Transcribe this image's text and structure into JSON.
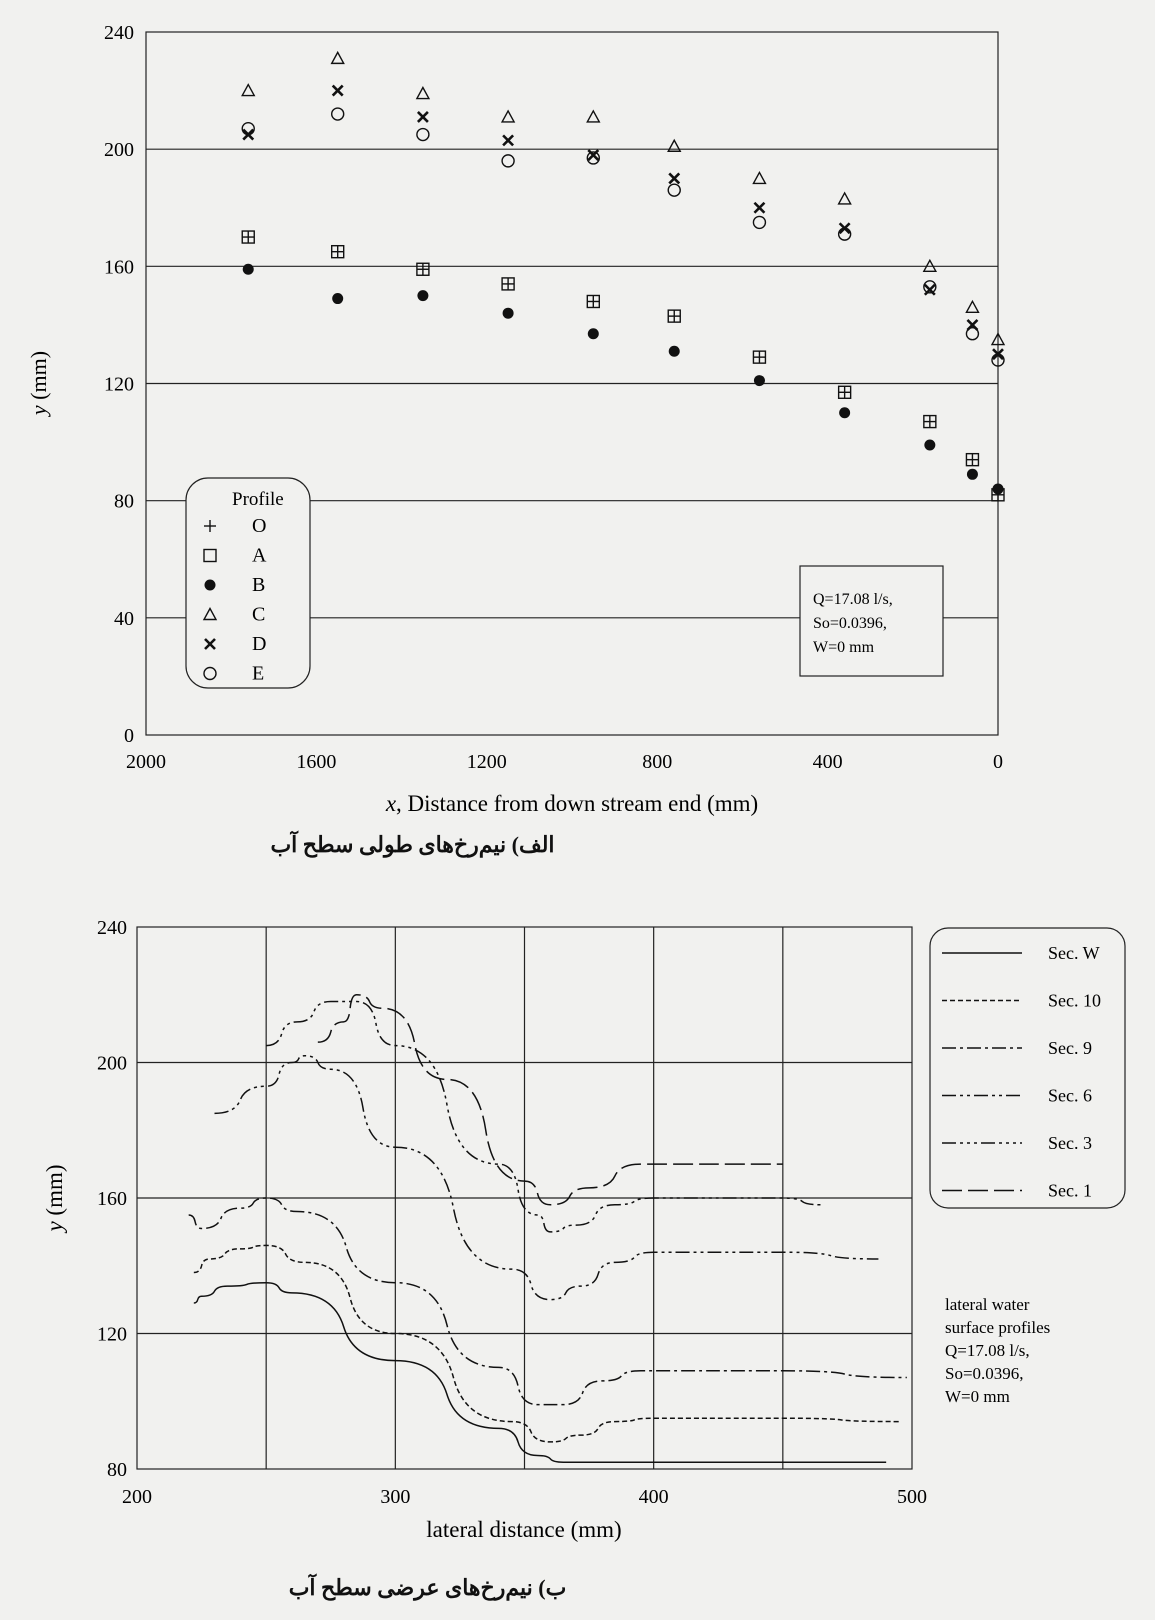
{
  "chart_data": [
    {
      "type": "scatter",
      "title": "",
      "caption": "الف) نیم‌رخ‌های طولی سطح آب",
      "xlabel_var": "x",
      "xlabel_rest": ", Distance from down stream end (mm)",
      "ylabel_var": "y",
      "ylabel_rest": " (mm)",
      "xlim": [
        2000,
        0
      ],
      "ylim": [
        0,
        240
      ],
      "xticks": [
        2000,
        1600,
        1200,
        800,
        400,
        0
      ],
      "yticks": [
        0,
        40,
        80,
        120,
        160,
        200,
        240
      ],
      "grid": "horizontal",
      "legend_title": "Profile",
      "legend_position": "bottom-left",
      "annotation": [
        "Q=17.08 l/s,",
        "So=0.0396,",
        "W=0 mm"
      ],
      "x": [
        1760,
        1550,
        1350,
        1150,
        950,
        760,
        560,
        360,
        160,
        60,
        0
      ],
      "series": [
        {
          "name": "O",
          "marker": "plus",
          "values": [
            170,
            165,
            159,
            154,
            148,
            143,
            129,
            117,
            107,
            94,
            82
          ]
        },
        {
          "name": "A",
          "marker": "square",
          "values": [
            170,
            165,
            159,
            154,
            148,
            143,
            129,
            117,
            107,
            94,
            82
          ]
        },
        {
          "name": "B",
          "marker": "dot",
          "values": [
            159,
            149,
            150,
            144,
            137,
            131,
            121,
            110,
            99,
            89,
            84
          ]
        },
        {
          "name": "C",
          "marker": "triangle",
          "values": [
            220,
            231,
            219,
            211,
            211,
            201,
            190,
            183,
            160,
            146,
            135
          ]
        },
        {
          "name": "D",
          "marker": "cross",
          "values": [
            205,
            220,
            211,
            203,
            198,
            190,
            180,
            173,
            152,
            140,
            130
          ]
        },
        {
          "name": "E",
          "marker": "circle",
          "values": [
            207,
            212,
            205,
            196,
            197,
            186,
            175,
            171,
            153,
            137,
            128
          ]
        }
      ]
    },
    {
      "type": "line",
      "title": "",
      "caption": "ب) نیم‌رخ‌های عرضی سطح آب",
      "xlabel": "lateral distance (mm)",
      "ylabel_var": "y",
      "ylabel_rest": " (mm)",
      "xlim": [
        200,
        500
      ],
      "ylim": [
        80,
        240
      ],
      "xticks": [
        200,
        300,
        400,
        500
      ],
      "yticks": [
        80,
        120,
        160,
        200,
        240
      ],
      "grid": "both",
      "legend_position": "top-right",
      "annotation": [
        "lateral water",
        "surface profiles",
        "Q=17.08 l/s,",
        "So=0.0396,",
        "W=0 mm"
      ],
      "series": [
        {
          "name": "Sec. W",
          "dash": "",
          "points": [
            [
              222,
              129
            ],
            [
              225,
              131
            ],
            [
              235,
              134
            ],
            [
              250,
              135
            ],
            [
              260,
              132
            ],
            [
              300,
              112
            ],
            [
              340,
              92
            ],
            [
              355,
              84
            ],
            [
              365,
              82
            ],
            [
              400,
              82
            ],
            [
              450,
              82
            ],
            [
              490,
              82
            ]
          ]
        },
        {
          "name": "Sec. 10",
          "dash": "5,3",
          "points": [
            [
              222,
              138
            ],
            [
              228,
              142
            ],
            [
              240,
              145
            ],
            [
              250,
              146
            ],
            [
              265,
              141
            ],
            [
              300,
              120
            ],
            [
              345,
              94
            ],
            [
              360,
              88
            ],
            [
              372,
              90
            ],
            [
              385,
              94
            ],
            [
              400,
              95
            ],
            [
              450,
              95
            ],
            [
              495,
              94
            ]
          ]
        },
        {
          "name": "Sec. 9",
          "dash": "14,4,3,4",
          "points": [
            [
              220,
              155
            ],
            [
              225,
              151
            ],
            [
              240,
              157
            ],
            [
              250,
              160
            ],
            [
              262,
              156
            ],
            [
              300,
              135
            ],
            [
              340,
              110
            ],
            [
              355,
              99
            ],
            [
              365,
              99
            ],
            [
              380,
              106
            ],
            [
              395,
              109
            ],
            [
              450,
              109
            ],
            [
              498,
              107
            ]
          ]
        },
        {
          "name": "Sec. 6",
          "dash": "14,4,3,4,3,4",
          "points": [
            [
              230,
              185
            ],
            [
              250,
              193
            ],
            [
              260,
              200
            ],
            [
              265,
              202
            ],
            [
              275,
              198
            ],
            [
              300,
              175
            ],
            [
              345,
              139
            ],
            [
              360,
              130
            ],
            [
              372,
              134
            ],
            [
              385,
              141
            ],
            [
              400,
              144
            ],
            [
              450,
              144
            ],
            [
              487,
              142
            ]
          ]
        },
        {
          "name": "Sec. 3",
          "dash": "14,4,3,4,3,4,3,4",
          "points": [
            [
              250,
              205
            ],
            [
              262,
              212
            ],
            [
              275,
              218
            ],
            [
              285,
              218
            ],
            [
              300,
              205
            ],
            [
              340,
              170
            ],
            [
              355,
              155
            ],
            [
              360,
              150
            ],
            [
              370,
              152
            ],
            [
              385,
              158
            ],
            [
              400,
              160
            ],
            [
              450,
              160
            ],
            [
              465,
              158
            ]
          ]
        },
        {
          "name": "Sec. 1",
          "dash": "20,6",
          "points": [
            [
              270,
              206
            ],
            [
              280,
              212
            ],
            [
              285,
              220
            ],
            [
              295,
              216
            ],
            [
              320,
              195
            ],
            [
              350,
              165
            ],
            [
              360,
              158
            ],
            [
              375,
              163
            ],
            [
              395,
              170
            ],
            [
              450,
              170
            ]
          ]
        }
      ]
    }
  ]
}
